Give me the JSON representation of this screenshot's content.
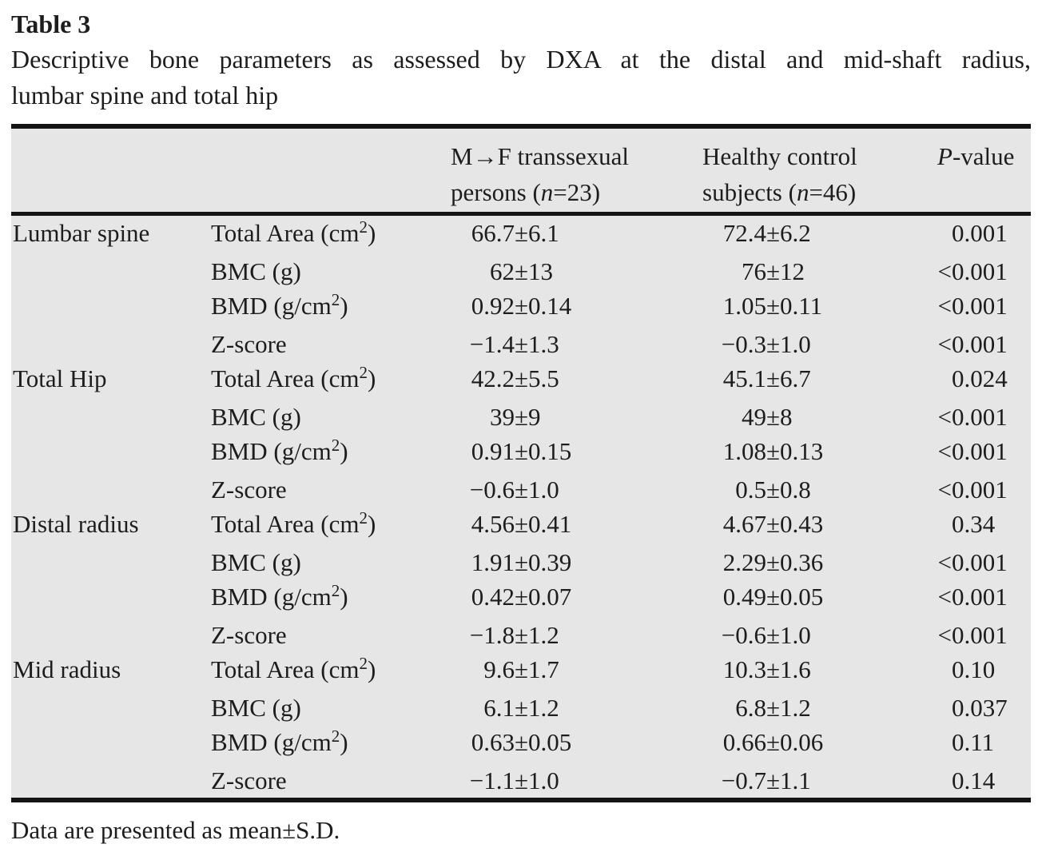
{
  "title": {
    "label": "Table 3",
    "caption_line1": "Descriptive bone parameters as assessed by DXA at the distal and mid-shaft radius,",
    "caption_line2": "lumbar spine and total hip"
  },
  "header": {
    "group_a_line1": "M→F transsexual",
    "group_a_sub": {
      "pre": "persons (",
      "var": "n",
      "post": "=23)"
    },
    "group_b_line1": "Healthy control",
    "group_b_sub": {
      "pre": "subjects (",
      "var": "n",
      "post": "=46)"
    },
    "p_var": "P",
    "p_suffix": "-value"
  },
  "pm": "±",
  "chart_data": {
    "type": "table",
    "title": "Descriptive bone parameters as assessed by DXA at the distal and mid-shaft radius, lumbar spine and total hip",
    "columns": [
      "Region",
      "Parameter",
      "M→F transsexual persons (n=23)",
      "Healthy control subjects (n=46)",
      "P-value"
    ]
  },
  "sections": [
    {
      "region": "Lumbar spine",
      "rows": [
        {
          "param_pre": "Total Area (cm",
          "param_sup": "2",
          "param_post": ")",
          "a_mean": "66.7",
          "a_sd": "6.1",
          "b_mean": "72.4",
          "b_sd": "6.2",
          "p_rel": "",
          "p_val": "0.001"
        },
        {
          "param_pre": "BMC (g)",
          "param_sup": "",
          "param_post": "",
          "a_mean": "62",
          "a_sd": "13",
          "b_mean": "76",
          "b_sd": "12",
          "p_rel": "<",
          "p_val": "0.001"
        },
        {
          "param_pre": "BMD (g/cm",
          "param_sup": "2",
          "param_post": ")",
          "a_mean": "0.92",
          "a_sd": "0.14",
          "b_mean": "1.05",
          "b_sd": "0.11",
          "p_rel": "<",
          "p_val": "0.001"
        },
        {
          "param_pre": "Z-score",
          "param_sup": "",
          "param_post": "",
          "a_mean": "−1.4",
          "a_sd": "1.3",
          "b_mean": "−0.3",
          "b_sd": "1.0",
          "p_rel": "<",
          "p_val": "0.001"
        }
      ]
    },
    {
      "region": "Total Hip",
      "rows": [
        {
          "param_pre": "Total Area (cm",
          "param_sup": "2",
          "param_post": ")",
          "a_mean": "42.2",
          "a_sd": "5.5",
          "b_mean": "45.1",
          "b_sd": "6.7",
          "p_rel": "",
          "p_val": "0.024"
        },
        {
          "param_pre": "BMC (g)",
          "param_sup": "",
          "param_post": "",
          "a_mean": "39",
          "a_sd": "9",
          "b_mean": "49",
          "b_sd": "8",
          "p_rel": "<",
          "p_val": "0.001"
        },
        {
          "param_pre": "BMD (g/cm",
          "param_sup": "2",
          "param_post": ")",
          "a_mean": "0.91",
          "a_sd": "0.15",
          "b_mean": "1.08",
          "b_sd": "0.13",
          "p_rel": "<",
          "p_val": "0.001"
        },
        {
          "param_pre": "Z-score",
          "param_sup": "",
          "param_post": "",
          "a_mean": "−0.6",
          "a_sd": "1.0",
          "b_mean": "0.5",
          "b_sd": "0.8",
          "p_rel": "<",
          "p_val": "0.001"
        }
      ]
    },
    {
      "region": "Distal radius",
      "rows": [
        {
          "param_pre": "Total Area (cm",
          "param_sup": "2",
          "param_post": ")",
          "a_mean": "4.56",
          "a_sd": "0.41",
          "b_mean": "4.67",
          "b_sd": "0.43",
          "p_rel": "",
          "p_val": "0.34"
        },
        {
          "param_pre": "BMC (g)",
          "param_sup": "",
          "param_post": "",
          "a_mean": "1.91",
          "a_sd": "0.39",
          "b_mean": "2.29",
          "b_sd": "0.36",
          "p_rel": "<",
          "p_val": "0.001"
        },
        {
          "param_pre": "BMD (g/cm",
          "param_sup": "2",
          "param_post": ")",
          "a_mean": "0.42",
          "a_sd": "0.07",
          "b_mean": "0.49",
          "b_sd": "0.05",
          "p_rel": "<",
          "p_val": "0.001"
        },
        {
          "param_pre": "Z-score",
          "param_sup": "",
          "param_post": "",
          "a_mean": "−1.8",
          "a_sd": "1.2",
          "b_mean": "−0.6",
          "b_sd": "1.0",
          "p_rel": "<",
          "p_val": "0.001"
        }
      ]
    },
    {
      "region": "Mid radius",
      "rows": [
        {
          "param_pre": "Total Area (cm",
          "param_sup": "2",
          "param_post": ")",
          "a_mean": "9.6",
          "a_sd": "1.7",
          "b_mean": "10.3",
          "b_sd": "1.6",
          "p_rel": "",
          "p_val": "0.10"
        },
        {
          "param_pre": "BMC (g)",
          "param_sup": "",
          "param_post": "",
          "a_mean": "6.1",
          "a_sd": "1.2",
          "b_mean": "6.8",
          "b_sd": "1.2",
          "p_rel": "",
          "p_val": "0.037"
        },
        {
          "param_pre": "BMD (g/cm",
          "param_sup": "2",
          "param_post": ")",
          "a_mean": "0.63",
          "a_sd": "0.05",
          "b_mean": "0.66",
          "b_sd": "0.06",
          "p_rel": "",
          "p_val": "0.11"
        },
        {
          "param_pre": "Z-score",
          "param_sup": "",
          "param_post": "",
          "a_mean": "−1.1",
          "a_sd": "1.0",
          "b_mean": "−0.7",
          "b_sd": "1.1",
          "p_rel": "",
          "p_val": "0.14"
        }
      ]
    }
  ],
  "footnote": "Data are presented as mean±S.D."
}
